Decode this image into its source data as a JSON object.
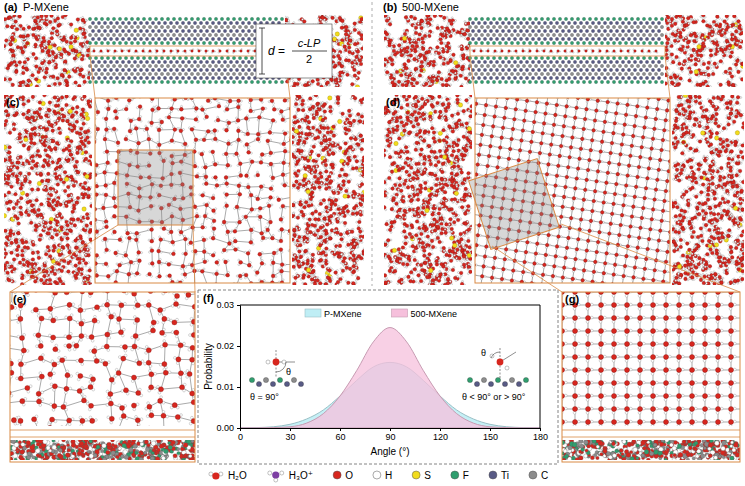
{
  "panels": [
    {
      "letter": "(a)",
      "title": "P-MXene"
    },
    {
      "letter": "(b)",
      "title": "500-MXene"
    },
    {
      "letter": "(c)"
    },
    {
      "letter": "(d)"
    },
    {
      "letter": "(e)"
    },
    {
      "letter": "(f)"
    },
    {
      "letter": "(g)"
    }
  ],
  "formula": {
    "lhs": "d",
    "relation": "=",
    "numerator": "c-LP",
    "denominator": "2"
  },
  "chart_data": {
    "type": "area",
    "xlabel": "Angle (°)",
    "ylabel": "Probability",
    "x": [
      0,
      10,
      20,
      30,
      40,
      50,
      60,
      70,
      80,
      90,
      100,
      110,
      120,
      130,
      140,
      150,
      160,
      170,
      180
    ],
    "series": [
      {
        "name": "P-MXene",
        "color": "#bfeef5",
        "values": [
          0.0,
          0.0001,
          0.0003,
          0.0009,
          0.0022,
          0.0044,
          0.0078,
          0.0116,
          0.0149,
          0.016,
          0.0149,
          0.0116,
          0.0078,
          0.0044,
          0.0022,
          0.0009,
          0.0003,
          0.0001,
          0.0
        ]
      },
      {
        "name": "500-MXene",
        "color": "#f6c0dc",
        "values": [
          0.0,
          0.0,
          0.0001,
          0.0003,
          0.0012,
          0.0035,
          0.0078,
          0.014,
          0.021,
          0.0245,
          0.021,
          0.014,
          0.0078,
          0.0035,
          0.0012,
          0.0003,
          0.0001,
          0.0,
          0.0
        ]
      }
    ],
    "xlim": [
      0,
      180
    ],
    "xticks": [
      0,
      30,
      60,
      90,
      120,
      150,
      180
    ],
    "ylim": [
      0,
      0.03
    ],
    "yticks": [
      {
        "value": 0,
        "label": "0.00"
      },
      {
        "value": 0.01,
        "label": "0.01"
      },
      {
        "value": 0.02,
        "label": "0.02"
      },
      {
        "value": 0.03,
        "label": "0.03"
      }
    ],
    "legend": "top",
    "annotations": [
      {
        "symbol": "θ",
        "text": "θ = 90°"
      },
      {
        "symbol": "θ",
        "text": "θ < 90° or > 90°"
      }
    ]
  },
  "key": [
    "H₂O",
    "H₃O⁺",
    "O",
    "H",
    "S",
    "F",
    "Ti",
    "C"
  ]
}
